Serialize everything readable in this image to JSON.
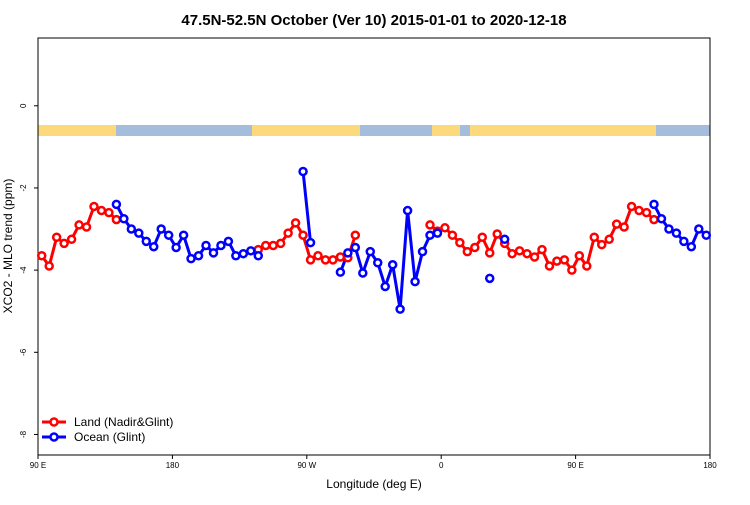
{
  "chart_data": {
    "type": "line",
    "title": "47.5N-52.5N October (Ver 10)   2015-01-01 to 2020-12-18",
    "x_label": "Longitude (deg E)",
    "y_label": "XCO2 - MLO trend (ppm)",
    "x": [
      92.5,
      97.5,
      102.5,
      107.5,
      112.5,
      117.5,
      122.5,
      127.5,
      132.5,
      137.5,
      142.5,
      147.5,
      152.5,
      157.5,
      162.5,
      167.5,
      172.5,
      177.5,
      182.5,
      187.5,
      192.5,
      197.5,
      202.5,
      207.5,
      212.5,
      217.5,
      222.5,
      227.5,
      232.5,
      237.5,
      242.5,
      247.5,
      252.5,
      257.5,
      262.5,
      267.5,
      272.5,
      277.5,
      282.5,
      287.5,
      292.5,
      297.5,
      302.5,
      307.5,
      312.5,
      317.5,
      322.5,
      327.5,
      332.5,
      337.5,
      342.5,
      347.5,
      352.5,
      357.5,
      362.5,
      367.5,
      372.5,
      377.5,
      382.5,
      387.5,
      392.5,
      397.5,
      402.5,
      407.5,
      412.5,
      417.5,
      422.5,
      427.5,
      432.5,
      437.5,
      442.5,
      447.5,
      452.5,
      457.5,
      462.5,
      467.5,
      472.5,
      477.5,
      482.5,
      487.5,
      492.5,
      497.5,
      502.5,
      507.5,
      512.5,
      517.5,
      522.5,
      527.5,
      532.5,
      537.5
    ],
    "series": [
      {
        "name": "Land (Nadir&Glint)",
        "color": "#ff0000",
        "values": [
          -3.65,
          -3.9,
          -3.2,
          -3.35,
          -3.25,
          -2.9,
          -2.95,
          -2.45,
          -2.55,
          -2.6,
          -2.77,
          null,
          null,
          null,
          null,
          null,
          null,
          null,
          null,
          null,
          null,
          null,
          null,
          null,
          null,
          null,
          null,
          null,
          null,
          -3.5,
          -3.4,
          -3.4,
          -3.35,
          -3.1,
          -2.85,
          -3.15,
          -3.75,
          -3.65,
          -3.75,
          -3.75,
          -3.68,
          -3.7,
          -3.15,
          null,
          null,
          null,
          null,
          null,
          null,
          null,
          null,
          null,
          -2.9,
          -3.05,
          -2.97,
          -3.15,
          -3.33,
          -3.55,
          -3.45,
          -3.2,
          -3.58,
          -3.12,
          -3.35,
          -3.6,
          -3.53,
          -3.6,
          -3.68,
          -3.5,
          -3.9,
          -3.78,
          -3.75,
          -4.0,
          -3.65,
          -3.9,
          -3.2,
          -3.38,
          -3.25,
          -2.88,
          -2.95,
          -2.45,
          -2.55,
          -2.6,
          -2.77,
          null,
          null,
          null,
          null,
          null,
          null,
          null
        ]
      },
      {
        "name": "Ocean (Glint)",
        "color": "#0000ff",
        "values": [
          null,
          null,
          null,
          null,
          null,
          null,
          null,
          null,
          null,
          null,
          -2.4,
          -2.75,
          -3.0,
          -3.1,
          -3.3,
          -3.43,
          -3.0,
          -3.15,
          -3.45,
          -3.15,
          -3.72,
          -3.65,
          -3.4,
          -3.58,
          -3.4,
          -3.3,
          -3.65,
          -3.6,
          -3.53,
          -3.65,
          null,
          null,
          null,
          null,
          null,
          -1.6,
          -3.33,
          null,
          null,
          null,
          -4.05,
          -3.58,
          -3.45,
          -4.07,
          -3.55,
          -3.82,
          -4.4,
          -3.87,
          -4.95,
          -2.55,
          -4.28,
          -3.55,
          -3.15,
          -3.1,
          null,
          null,
          null,
          null,
          null,
          null,
          -4.2,
          null,
          -3.25,
          null,
          null,
          null,
          null,
          null,
          null,
          null,
          null,
          null,
          null,
          null,
          null,
          null,
          null,
          null,
          null,
          null,
          null,
          null,
          -2.4,
          -2.75,
          -3.0,
          -3.1,
          -3.3,
          -3.43,
          -3.0,
          -3.15
        ]
      }
    ],
    "xlim": [
      90,
      540
    ],
    "xticks": [
      {
        "value": 90,
        "label": "90 E"
      },
      180,
      {
        "value": 270,
        "label": "90 W"
      },
      {
        "value": 360,
        "label": "0"
      },
      {
        "value": 450,
        "label": "90 E"
      },
      {
        "value": 540,
        "label": "180"
      }
    ],
    "ylim": [
      -8.5,
      1.65
    ],
    "yticks": [
      0,
      -2,
      -4,
      -6,
      -8
    ],
    "legend": "bottom-left"
  }
}
